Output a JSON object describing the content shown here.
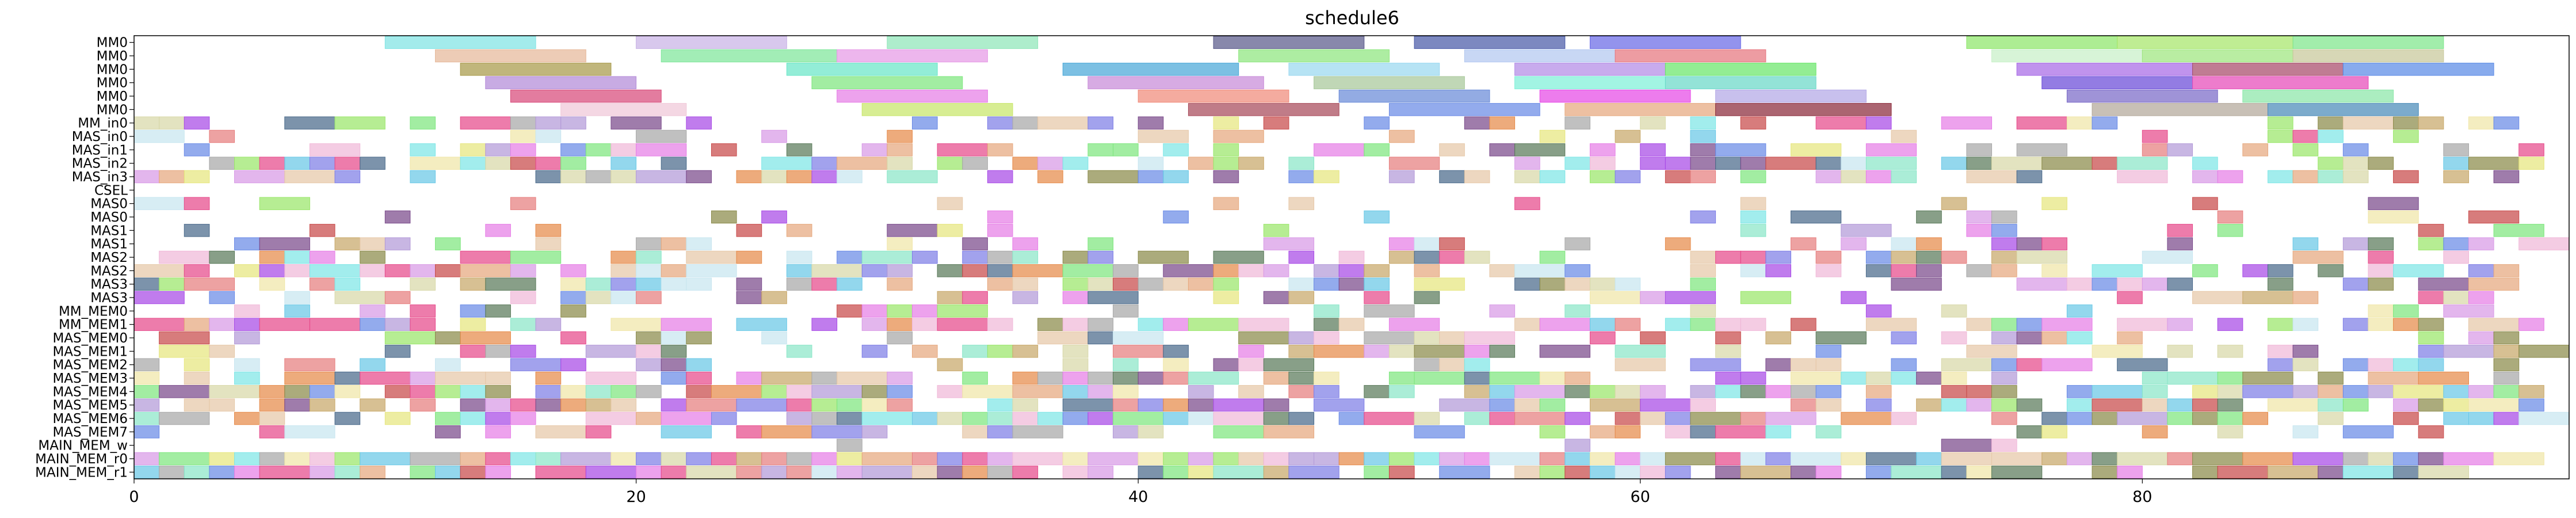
{
  "chart_data": {
    "type": "gantt",
    "title": "schedule6",
    "xlabel": "",
    "ylabel": "",
    "xlim": [
      0,
      97
    ],
    "x_ticks": [
      0,
      20,
      40,
      60,
      80
    ],
    "grid": false,
    "legend": "none",
    "rows": [
      "MM0",
      "MM0",
      "MM0",
      "MM0",
      "MM0",
      "MM0",
      "MM_in0",
      "MAS_in0",
      "MAS_in1",
      "MAS_in2",
      "MAS_in3",
      "CSEL",
      "MAS0",
      "MAS0",
      "MAS1",
      "MAS1",
      "MAS2",
      "MAS2",
      "MAS3",
      "MAS3",
      "MM_MEM0",
      "MM_MEM1",
      "MAS_MEM0",
      "MAS_MEM1",
      "MAS_MEM2",
      "MAS_MEM3",
      "MAS_MEM4",
      "MAS_MEM5",
      "MAS_MEM6",
      "MAS_MEM7",
      "MAIN_MEM_w",
      "MAIN_MEM_r0",
      "MAIN_MEM_r1"
    ],
    "tasks": [
      {
        "row": 0,
        "start": 10,
        "end": 16,
        "color": "#7fe3e3"
      },
      {
        "row": 0,
        "start": 20,
        "end": 26,
        "color": "#c9b3e6"
      },
      {
        "row": 0,
        "start": 30,
        "end": 36,
        "color": "#8fe6b8"
      },
      {
        "row": 0,
        "start": 43,
        "end": 49,
        "color": "#5a5a8a"
      },
      {
        "row": 0,
        "start": 51,
        "end": 57,
        "color": "#4a5aa8"
      },
      {
        "row": 0,
        "start": 58,
        "end": 64,
        "color": "#6a6ae6"
      },
      {
        "row": 0,
        "start": 73,
        "end": 79,
        "color": "#8ee66a"
      },
      {
        "row": 0,
        "start": 79,
        "end": 86,
        "color": "#a6e66a"
      },
      {
        "row": 0,
        "start": 86,
        "end": 92,
        "color": "#7ee68a"
      },
      {
        "row": 1,
        "start": 12,
        "end": 18,
        "color": "#e6b89a"
      },
      {
        "row": 1,
        "start": 21,
        "end": 28,
        "color": "#7ee69a"
      },
      {
        "row": 1,
        "start": 28,
        "end": 34,
        "color": "#e69ae6"
      },
      {
        "row": 1,
        "start": 44,
        "end": 50,
        "color": "#8ee67e"
      },
      {
        "row": 1,
        "start": 53,
        "end": 59,
        "color": "#b3c8f0"
      },
      {
        "row": 1,
        "start": 59,
        "end": 65,
        "color": "#e6767e"
      },
      {
        "row": 1,
        "start": 74,
        "end": 80,
        "color": "#c8f0c8"
      },
      {
        "row": 1,
        "start": 80,
        "end": 86,
        "color": "#9ee67e"
      },
      {
        "row": 1,
        "start": 86,
        "end": 92,
        "color": "#c8c89a"
      },
      {
        "row": 2,
        "start": 13,
        "end": 19,
        "color": "#a89a4a"
      },
      {
        "row": 2,
        "start": 26,
        "end": 32,
        "color": "#6ae6c8"
      },
      {
        "row": 2,
        "start": 37,
        "end": 44,
        "color": "#4aa8d8"
      },
      {
        "row": 2,
        "start": 46,
        "end": 52,
        "color": "#9ad8f0"
      },
      {
        "row": 2,
        "start": 55,
        "end": 61,
        "color": "#b38ae6"
      },
      {
        "row": 2,
        "start": 61,
        "end": 67,
        "color": "#6ae66a"
      },
      {
        "row": 2,
        "start": 75,
        "end": 82,
        "color": "#a86ae6"
      },
      {
        "row": 2,
        "start": 82,
        "end": 88,
        "color": "#a84a6a"
      },
      {
        "row": 2,
        "start": 88,
        "end": 94,
        "color": "#5a8ae6"
      },
      {
        "row": 3,
        "start": 14,
        "end": 20,
        "color": "#b38ad8"
      },
      {
        "row": 3,
        "start": 27,
        "end": 33,
        "color": "#7ee67e"
      },
      {
        "row": 3,
        "start": 38,
        "end": 45,
        "color": "#c88ad8"
      },
      {
        "row": 3,
        "start": 47,
        "end": 53,
        "color": "#a8c89a"
      },
      {
        "row": 3,
        "start": 55,
        "end": 61,
        "color": "#7ef0d8"
      },
      {
        "row": 3,
        "start": 61,
        "end": 67,
        "color": "#6ad8c8"
      },
      {
        "row": 3,
        "start": 76,
        "end": 82,
        "color": "#6a4ad8"
      },
      {
        "row": 3,
        "start": 82,
        "end": 89,
        "color": "#e64ab8"
      },
      {
        "row": 4,
        "start": 15,
        "end": 21,
        "color": "#d84a7a"
      },
      {
        "row": 4,
        "start": 28,
        "end": 34,
        "color": "#e67ee6"
      },
      {
        "row": 4,
        "start": 40,
        "end": 46,
        "color": "#f08a7a"
      },
      {
        "row": 4,
        "start": 48,
        "end": 54,
        "color": "#6a8ad8"
      },
      {
        "row": 4,
        "start": 56,
        "end": 62,
        "color": "#e64ae6"
      },
      {
        "row": 4,
        "start": 63,
        "end": 69,
        "color": "#b3a8e6"
      },
      {
        "row": 4,
        "start": 77,
        "end": 83,
        "color": "#7a6ac8"
      },
      {
        "row": 4,
        "start": 84,
        "end": 90,
        "color": "#8ae6a8"
      },
      {
        "row": 5,
        "start": 17,
        "end": 22,
        "color": "#f0c8d8"
      },
      {
        "row": 5,
        "start": 29,
        "end": 35,
        "color": "#c8e66a"
      },
      {
        "row": 5,
        "start": 42,
        "end": 48,
        "color": "#a84a5a"
      },
      {
        "row": 5,
        "start": 50,
        "end": 56,
        "color": "#6a8ae6"
      },
      {
        "row": 5,
        "start": 57,
        "end": 63,
        "color": "#e6a87e"
      },
      {
        "row": 5,
        "start": 63,
        "end": 70,
        "color": "#8a2a3a"
      },
      {
        "row": 5,
        "start": 78,
        "end": 85,
        "color": "#b3a89a"
      },
      {
        "row": 5,
        "start": 85,
        "end": 91,
        "color": "#4a8ab8"
      }
    ],
    "random_fill": {
      "seed": 6,
      "density_by_row": [
        0,
        0,
        0,
        0,
        0,
        0,
        0.42,
        0.32,
        0.48,
        0.62,
        0.6,
        0,
        0.16,
        0.14,
        0.24,
        0.32,
        0.52,
        0.66,
        0.5,
        0.4,
        0.28,
        0.72,
        0.4,
        0.4,
        0.52,
        0.66,
        0.75,
        0.7,
        0.72,
        0.45,
        0.02,
        0.99,
        0.74
      ],
      "palette": [
        "#e67e7e",
        "#7ee6e6",
        "#e67ee6",
        "#7e7ee6",
        "#e6e67e",
        "#7ee67e",
        "#c8a86a",
        "#6a8ae6",
        "#a84ae6",
        "#e6a87e",
        "#5a7a5a",
        "#e64a8a",
        "#8ae6c8",
        "#b39ad8",
        "#d8d8a8",
        "#f0b8d8",
        "#4a6a8a",
        "#c84a4a",
        "#9ae66a",
        "#d89ae6",
        "#6ac8e6",
        "#a8a8a8",
        "#e6c8a8",
        "#7a4a8a",
        "#c8e6f0",
        "#f0e6a8",
        "#8a8a4a",
        "#e68a4a"
      ]
    }
  }
}
